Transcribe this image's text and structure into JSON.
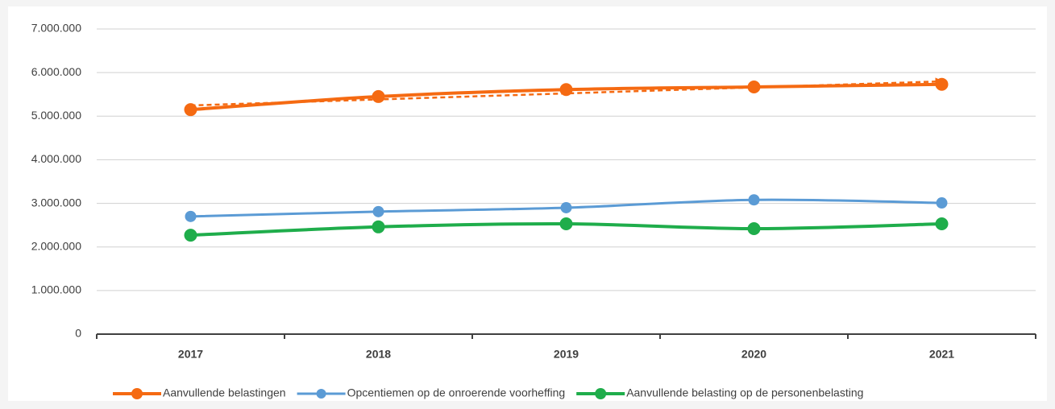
{
  "chart_data": {
    "type": "line",
    "categories": [
      "2017",
      "2018",
      "2019",
      "2020",
      "2021"
    ],
    "series": [
      {
        "name": "Aanvullende belastingen",
        "color": "#f56a12",
        "values": [
          5150000,
          5450000,
          5610000,
          5670000,
          5730000
        ],
        "trendline": true
      },
      {
        "name": "Opcentiemen op de onroerende voorheffing",
        "color": "#5b9bd5",
        "values": [
          2700000,
          2810000,
          2900000,
          3080000,
          3010000
        ]
      },
      {
        "name": "Aanvullende belasting op de personenbelasting",
        "color": "#1fad4b",
        "values": [
          2270000,
          2460000,
          2530000,
          2420000,
          2530000
        ]
      }
    ],
    "ylim": [
      0,
      7000000
    ],
    "yticks": [
      0,
      {
        "value": 1000000,
        "label": "1.000.000"
      },
      {
        "value": 2000000,
        "label": "2.000.000"
      },
      {
        "value": 3000000,
        "label": "3.000.000"
      },
      {
        "value": 4000000,
        "label": "4.000.000"
      },
      {
        "value": 5000000,
        "label": "5.000.000"
      },
      {
        "value": 6000000,
        "label": "6.000.000"
      },
      {
        "value": 7000000,
        "label": "7.000.000"
      }
    ],
    "grid": true,
    "legend": "bottom"
  }
}
